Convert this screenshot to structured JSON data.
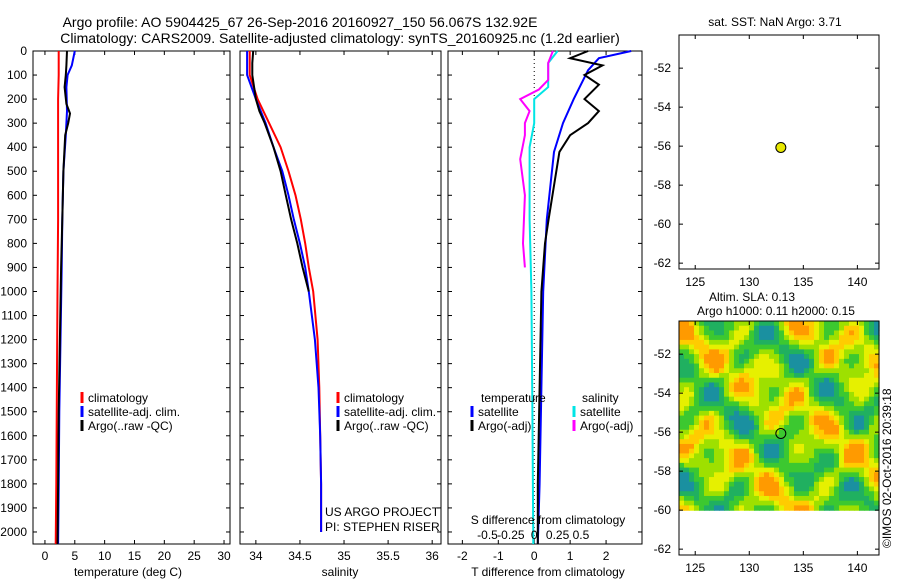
{
  "title_line1": "Argo profile: AO 5904425_67 26-Sep-2016 20160927_150 56.067S 132.92E",
  "title_line2": "Climatology: CARS2009. Satellite-adjusted climatology: synTS_20160925.nc (1.2d earlier)",
  "colors": {
    "climatology": "#ff0000",
    "satellite": "#0000ff",
    "argo": "#000000",
    "s_satellite": "#00e5e5",
    "s_argo": "#ff00ff"
  },
  "depth_ticks": [
    "0",
    "100",
    "200",
    "300",
    "400",
    "500",
    "600",
    "700",
    "800",
    "900",
    "1000",
    "1100",
    "1200",
    "1300",
    "1400",
    "1500",
    "1600",
    "1700",
    "1800",
    "1900",
    "2000"
  ],
  "chart_data": [
    {
      "type": "line",
      "name": "temperature panel",
      "xlabel": "temperature (deg C)",
      "ylabel": "",
      "xlim": [
        -2,
        31
      ],
      "ylim": [
        2050,
        0
      ],
      "xticks": [
        "0",
        "5",
        "10",
        "15",
        "20",
        "25",
        "30"
      ],
      "xtick_values": [
        0,
        5,
        10,
        15,
        20,
        25,
        30
      ],
      "legend": [
        "climatology",
        "satellite-adj. clim.",
        "Argo(..raw -QC)"
      ],
      "series": [
        {
          "name": "climatology",
          "color_key": "climatology",
          "depth": [
            0,
            100,
            200,
            400,
            700,
            1000,
            1400,
            1800,
            2050
          ],
          "values": [
            2.3,
            2.3,
            2.2,
            2.2,
            2.2,
            2.1,
            2.0,
            1.9,
            1.8
          ]
        },
        {
          "name": "satellite-adj. clim.",
          "color_key": "satellite",
          "depth": [
            0,
            60,
            100,
            150,
            250,
            350,
            500,
            700,
            900,
            1200,
            1500,
            1800,
            2050
          ],
          "values": [
            5.0,
            4.5,
            3.8,
            3.6,
            3.7,
            3.5,
            3.1,
            2.9,
            2.8,
            2.6,
            2.4,
            2.3,
            2.2
          ]
        },
        {
          "name": "Argo(..raw -QC)",
          "color_key": "argo",
          "depth": [
            0,
            60,
            100,
            150,
            220,
            260,
            300,
            350,
            500,
            700,
            900,
            1200,
            1500,
            1800,
            2050
          ],
          "values": [
            3.7,
            3.6,
            3.5,
            3.3,
            3.6,
            4.2,
            3.9,
            3.4,
            3.1,
            2.9,
            2.7,
            2.5,
            2.3,
            2.2,
            2.1
          ]
        }
      ]
    },
    {
      "type": "line",
      "name": "salinity panel",
      "xlabel": "salinity",
      "ylabel": "",
      "xlim": [
        33.82,
        36.1
      ],
      "ylim": [
        2050,
        0
      ],
      "xticks": [
        "34",
        "34.5",
        "35",
        "35.5",
        "36"
      ],
      "xtick_values": [
        34,
        34.5,
        35,
        35.5,
        36
      ],
      "legend": [
        "climatology",
        "satellite-adj. clim.",
        "Argo(..raw -QC)"
      ],
      "annotations": [
        "US ARGO PROJECT",
        "PI: STEPHEN RISER"
      ],
      "series": [
        {
          "name": "climatology",
          "color_key": "climatology",
          "depth": [
            0,
            100,
            200,
            300,
            400,
            500,
            600,
            700,
            800,
            900,
            1000,
            1200,
            1400,
            1600,
            1800,
            2000
          ],
          "values": [
            33.93,
            33.93,
            34.02,
            34.15,
            34.28,
            34.37,
            34.45,
            34.51,
            34.56,
            34.6,
            34.65,
            34.7,
            34.72,
            34.73,
            34.74,
            34.74
          ]
        },
        {
          "name": "satellite-adj. clim.",
          "color_key": "satellite",
          "depth": [
            0,
            100,
            200,
            300,
            400,
            500,
            600,
            700,
            800,
            900,
            1000,
            1200,
            1400,
            1600,
            1800,
            2000
          ],
          "values": [
            33.9,
            33.9,
            34.0,
            34.11,
            34.2,
            34.3,
            34.37,
            34.43,
            34.5,
            34.56,
            34.6,
            34.67,
            34.71,
            34.73,
            34.74,
            34.74
          ]
        },
        {
          "name": "Argo(..raw -QC)",
          "color_key": "argo",
          "depth": [
            0,
            50,
            100,
            150,
            200,
            250,
            300,
            350,
            400,
            500,
            600,
            700,
            800,
            900,
            1000
          ],
          "values": [
            33.97,
            33.96,
            33.96,
            33.98,
            34.0,
            34.04,
            34.1,
            34.15,
            34.2,
            34.28,
            34.34,
            34.4,
            34.47,
            34.53,
            34.6
          ]
        }
      ]
    },
    {
      "type": "line",
      "name": "difference panel",
      "xlabel": "T difference from climatology",
      "x2label": "S difference from climatology",
      "xlim": [
        -2.4,
        3.0
      ],
      "ylim": [
        2050,
        0
      ],
      "xticks": [
        "-2",
        "-1",
        "0",
        "1",
        "2"
      ],
      "xtick_values": [
        -2,
        -1,
        0,
        1,
        2
      ],
      "s_ticks": [
        "-0.5",
        "-0.25",
        "0",
        "0.25",
        "0.5"
      ],
      "legend_temperature": [
        "temperature",
        "satellite",
        "Argo(-adj)"
      ],
      "legend_salinity": [
        "salinity",
        "satellite",
        "Argo(-adj)"
      ],
      "series": [
        {
          "name": "temperature satellite",
          "color_key": "satellite",
          "depth": [
            0,
            30,
            80,
            200,
            300,
            420,
            700,
            1000,
            1400,
            1800,
            2050
          ],
          "values": [
            2.7,
            1.8,
            1.5,
            1.1,
            0.8,
            0.55,
            0.35,
            0.25,
            0.2,
            0.15,
            0.1
          ]
        },
        {
          "name": "temperature Argo(-adj)",
          "color_key": "argo",
          "depth": [
            0,
            30,
            60,
            100,
            140,
            200,
            250,
            300,
            350,
            420,
            700,
            800,
            1000,
            1400,
            1800,
            2050
          ],
          "values": [
            1.5,
            1.0,
            1.9,
            1.4,
            1.8,
            1.4,
            1.8,
            1.5,
            1.0,
            0.7,
            0.4,
            0.3,
            0.2,
            0.15,
            0.1,
            0.1
          ]
        },
        {
          "name": "salinity satellite",
          "color_key": "s_satellite",
          "depth": [
            0,
            50,
            150,
            200,
            300,
            400,
            700,
            1000,
            1500,
            2050
          ],
          "values": [
            0.25,
            0.15,
            0.15,
            0.0,
            0.0,
            -0.05,
            -0.05,
            -0.03,
            -0.02,
            -0.01
          ]
        },
        {
          "name": "salinity Argo(-adj)",
          "color_key": "s_argo",
          "depth": [
            0,
            50,
            120,
            160,
            200,
            250,
            300,
            350,
            450,
            600,
            800,
            900
          ],
          "values": [
            0.2,
            0.15,
            0.15,
            0.05,
            -0.15,
            -0.05,
            -0.1,
            -0.1,
            -0.15,
            -0.1,
            -0.12,
            -0.1
          ]
        }
      ]
    },
    {
      "type": "scatter",
      "name": "sat SST map",
      "title": "sat. SST: NaN Argo: 3.71",
      "xlim": [
        123.5,
        142
      ],
      "ylim": [
        -62.3,
        -50.3
      ],
      "xticks": [
        "125",
        "130",
        "135",
        "140"
      ],
      "xtick_values": [
        125,
        130,
        135,
        140
      ],
      "yticks": [
        "-52",
        "-54",
        "-56",
        "-58",
        "-60",
        "-62"
      ],
      "ytick_values": [
        -52,
        -54,
        -56,
        -58,
        -60,
        -62
      ],
      "points": [
        {
          "lon": 132.92,
          "lat": -56.067
        }
      ]
    },
    {
      "type": "heatmap",
      "name": "altimetry map",
      "title": "Altim. SLA: 0.13",
      "subtitle": "Argo h1000: 0.11 h2000: 0.15",
      "xlim": [
        123.5,
        142
      ],
      "ylim": [
        -62.3,
        -50.3
      ],
      "xticks": [
        "125",
        "130",
        "135",
        "140"
      ],
      "xtick_values": [
        125,
        130,
        135,
        140
      ],
      "yticks": [
        "-52",
        "-54",
        "-56",
        "-58",
        "-60",
        "-62"
      ],
      "ytick_values": [
        -52,
        -54,
        -56,
        -58,
        -60,
        -62
      ],
      "field_extent": {
        "lon": [
          123.5,
          142
        ],
        "lat": [
          -60,
          -50.3
        ]
      },
      "points": [
        {
          "lon": 132.92,
          "lat": -56.067
        }
      ]
    }
  ],
  "watermark": "©IMOS 02-Oct-2016 20:39:18"
}
